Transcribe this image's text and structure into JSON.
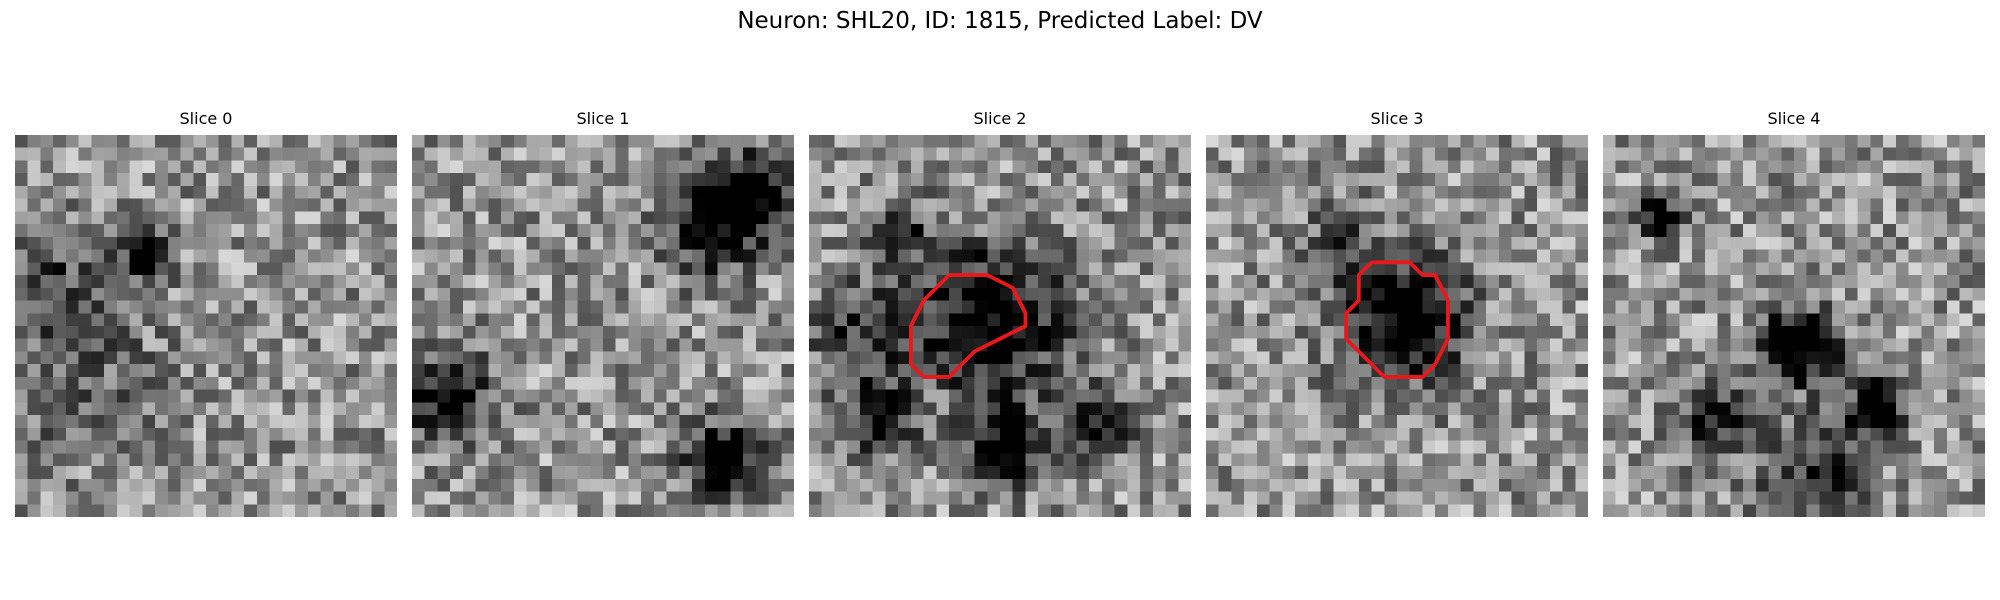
{
  "title": "Neuron: SHL20, ID: 1815, Predicted Label: DV",
  "colormap": "gray",
  "contour_color": "#e8191c",
  "slices": [
    {
      "label": "Slice 0",
      "dark_spots": [
        [
          10,
          9,
          1.2,
          0.9
        ],
        [
          3,
          11,
          3,
          0.25
        ],
        [
          4,
          18,
          5,
          0.2
        ]
      ],
      "contour": null
    },
    {
      "label": "Slice 1",
      "dark_spots": [
        [
          24,
          25,
          2,
          0.8
        ],
        [
          26,
          4,
          2,
          0.8
        ],
        [
          23,
          7,
          2.5,
          0.6
        ],
        [
          2,
          20,
          2.5,
          0.6
        ]
      ],
      "contour": null
    },
    {
      "label": "Slice 2",
      "dark_spots": [
        [
          14,
          14,
          4,
          0.7
        ],
        [
          15,
          24,
          2,
          0.7
        ],
        [
          4,
          15,
          3,
          0.4
        ],
        [
          7,
          7,
          2,
          0.3
        ],
        [
          5,
          22,
          2,
          0.5
        ],
        [
          22,
          22,
          2,
          0.5
        ]
      ],
      "contour": [
        [
          11,
          11
        ],
        [
          14,
          11
        ],
        [
          16,
          12
        ],
        [
          17,
          14
        ],
        [
          17,
          15
        ],
        [
          15,
          16
        ],
        [
          13,
          17
        ],
        [
          12,
          18
        ],
        [
          11,
          19
        ],
        [
          9,
          19
        ],
        [
          8,
          18
        ],
        [
          8,
          15
        ],
        [
          9,
          13
        ],
        [
          10,
          12
        ],
        [
          11,
          11
        ]
      ]
    },
    {
      "label": "Slice 3",
      "dark_spots": [
        [
          15,
          14,
          3.5,
          0.7
        ],
        [
          10,
          8,
          2,
          0.3
        ]
      ],
      "contour": [
        [
          13,
          10
        ],
        [
          16,
          10
        ],
        [
          17,
          11
        ],
        [
          18,
          11
        ],
        [
          19,
          13
        ],
        [
          19,
          16
        ],
        [
          18,
          18
        ],
        [
          17,
          19
        ],
        [
          16,
          19
        ],
        [
          14,
          19
        ],
        [
          13,
          18
        ],
        [
          12,
          17
        ],
        [
          11,
          16
        ],
        [
          11,
          14
        ],
        [
          12,
          13
        ],
        [
          12,
          11
        ],
        [
          13,
          10
        ]
      ]
    },
    {
      "label": "Slice 4",
      "dark_spots": [
        [
          15,
          16,
          2,
          0.9
        ],
        [
          21,
          21,
          1.5,
          0.8
        ],
        [
          4,
          6,
          1.2,
          0.6
        ],
        [
          8,
          22,
          2,
          0.5
        ],
        [
          16,
          26,
          3,
          0.4
        ]
      ],
      "contour": null
    }
  ]
}
